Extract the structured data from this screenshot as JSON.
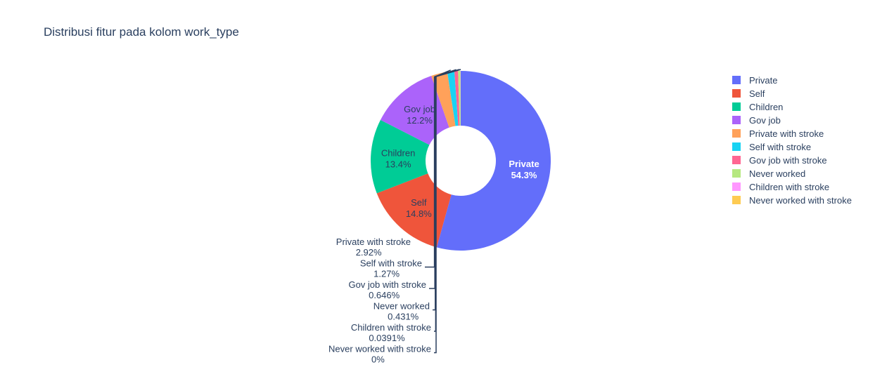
{
  "chart_data": {
    "type": "pie",
    "title": "Distribusi fitur pada kolom work_type",
    "hole": true,
    "legend_position": "right",
    "slices": [
      {
        "label": "Private",
        "percent_label": "54.3%",
        "value": 54.3,
        "color": "#636efa"
      },
      {
        "label": "Self",
        "percent_label": "14.8%",
        "value": 14.8,
        "color": "#EF553B"
      },
      {
        "label": "Children",
        "percent_label": "13.4%",
        "value": 13.4,
        "color": "#00cc96"
      },
      {
        "label": "Gov job",
        "percent_label": "12.2%",
        "value": 12.2,
        "color": "#ab63fa"
      },
      {
        "label": "Private with stroke",
        "percent_label": "2.92%",
        "value": 2.92,
        "color": "#FFA15A"
      },
      {
        "label": "Self with stroke",
        "percent_label": "1.27%",
        "value": 1.27,
        "color": "#19d3f3"
      },
      {
        "label": "Gov job with stroke",
        "percent_label": "0.646%",
        "value": 0.646,
        "color": "#FF6692"
      },
      {
        "label": "Never worked",
        "percent_label": "0.431%",
        "value": 0.431,
        "color": "#B6E880"
      },
      {
        "label": "Children with stroke",
        "percent_label": "0.0391%",
        "value": 0.0391,
        "color": "#FF97FF"
      },
      {
        "label": "Never worked with stroke",
        "percent_label": "0%",
        "value": 0,
        "color": "#FECB52"
      }
    ]
  }
}
